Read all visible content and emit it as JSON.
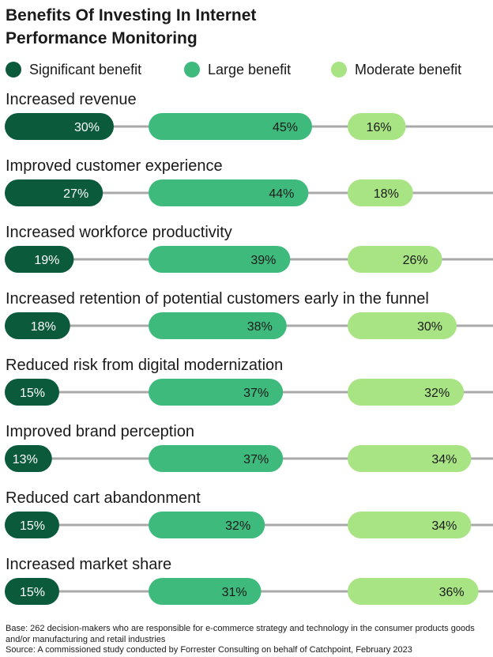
{
  "chart_data": {
    "type": "bar",
    "title": "Benefits Of Investing In Internet Performance Monitoring",
    "categories": [
      "Increased revenue",
      "Improved customer experience",
      "Increased workforce productivity",
      "Increased retention of potential customers early in the funnel",
      "Reduced risk from digital modernization",
      "Improved brand perception",
      "Reduced cart abandonment",
      "Increased market share"
    ],
    "series": [
      {
        "name": "Significant benefit",
        "color": "#0b5a3c",
        "values": [
          30,
          27,
          19,
          18,
          15,
          13,
          15,
          15
        ]
      },
      {
        "name": "Large benefit",
        "color": "#3dba7c",
        "values": [
          45,
          44,
          39,
          38,
          37,
          37,
          32,
          31
        ]
      },
      {
        "name": "Moderate benefit",
        "color": "#a8e484",
        "values": [
          16,
          18,
          26,
          30,
          32,
          34,
          34,
          36
        ]
      }
    ],
    "value_suffix": "%",
    "legend_position": "top-left",
    "grid": false
  },
  "footnote": {
    "base": "Base: 262 decision-makers who are responsible for e-commerce strategy and technology in the consumer products goods and/or manufacturing and retail industries",
    "source": "Source: A commissioned study conducted by Forrester Consulting on behalf of Catchpoint, February 2023"
  },
  "colors": {
    "line": "#a9a9a9",
    "text": "#1a1a1a",
    "label_on_dark": "#ffffff"
  }
}
